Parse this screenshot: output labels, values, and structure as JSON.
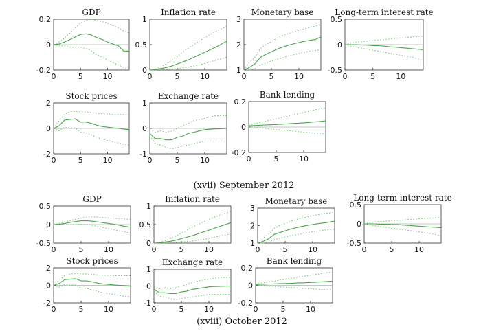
{
  "colors": {
    "line": "#4aa44a",
    "band": "#6cc06c",
    "zero": "#b0b0b0",
    "axis": "#333333"
  },
  "captions": {
    "top": "(xvii)   September 2012",
    "bottom": "(xviii)   October 2012"
  },
  "chart_data": [
    {
      "type": "line",
      "section": "(xvii) September 2012",
      "title": "GDP",
      "xlim": [
        0,
        14
      ],
      "ylim": [
        -0.2,
        0.2
      ],
      "yticks": [
        {
          "v": 0.2,
          "t": "0.2"
        },
        {
          "v": 0,
          "t": "0"
        },
        {
          "v": -0.2,
          "t": "-0.2"
        }
      ],
      "xticks": [
        0,
        5,
        10
      ],
      "x": [
        0,
        1,
        2,
        3,
        4,
        5,
        6,
        7,
        8,
        9,
        10,
        11,
        12,
        13,
        14
      ],
      "center": [
        0,
        0.005,
        0.02,
        0.04,
        0.06,
        0.08,
        0.085,
        0.075,
        0.055,
        0.04,
        0.02,
        0.005,
        -0.01,
        -0.05,
        -0.05
      ],
      "upper": [
        0,
        0.02,
        0.05,
        0.09,
        0.13,
        0.17,
        0.19,
        0.2,
        0.19,
        0.18,
        0.17,
        0.15,
        0.13,
        0.11,
        0.09
      ],
      "lower": [
        0,
        -0.01,
        -0.01,
        -0.02,
        -0.02,
        -0.02,
        -0.03,
        -0.05,
        -0.08,
        -0.1,
        -0.12,
        -0.14,
        -0.16,
        -0.18,
        -0.19
      ]
    },
    {
      "type": "line",
      "section": "(xvii) September 2012",
      "title": "Inflation rate",
      "xlim": [
        0,
        14
      ],
      "ylim": [
        0,
        1
      ],
      "yticks": [
        {
          "v": 1,
          "t": "1"
        },
        {
          "v": 0.5,
          "t": "0.5"
        },
        {
          "v": 0,
          "t": "0"
        }
      ],
      "xticks": [
        0,
        5,
        10
      ],
      "x": [
        0,
        1,
        2,
        3,
        4,
        5,
        6,
        7,
        8,
        9,
        10,
        11,
        12,
        13,
        14
      ],
      "center": [
        0,
        0.01,
        0.03,
        0.05,
        0.08,
        0.12,
        0.16,
        0.2,
        0.25,
        0.3,
        0.35,
        0.4,
        0.45,
        0.51,
        0.57
      ],
      "upper": [
        0,
        0.02,
        0.06,
        0.12,
        0.19,
        0.27,
        0.35,
        0.43,
        0.5,
        0.57,
        0.64,
        0.7,
        0.76,
        0.81,
        0.86
      ],
      "lower": [
        0,
        0,
        0.01,
        0.01,
        0.02,
        0.03,
        0.04,
        0.06,
        0.08,
        0.1,
        0.13,
        0.16,
        0.19,
        0.22,
        0.25
      ]
    },
    {
      "type": "line",
      "section": "(xvii) September 2012",
      "title": "Monetary base",
      "xlim": [
        0,
        14
      ],
      "ylim": [
        1,
        3
      ],
      "yticks": [
        {
          "v": 3,
          "t": "3"
        },
        {
          "v": 2,
          "t": "2"
        },
        {
          "v": 1,
          "t": "1"
        }
      ],
      "xticks": [
        0,
        5,
        10
      ],
      "x": [
        0,
        1,
        2,
        3,
        4,
        5,
        6,
        7,
        8,
        9,
        10,
        11,
        12,
        13,
        14
      ],
      "center": [
        1,
        1.1,
        1.25,
        1.5,
        1.62,
        1.72,
        1.82,
        1.9,
        1.97,
        2.03,
        2.08,
        2.13,
        2.17,
        2.2,
        2.3
      ],
      "upper": [
        1,
        1.3,
        1.5,
        1.85,
        2,
        2.12,
        2.25,
        2.35,
        2.43,
        2.5,
        2.56,
        2.62,
        2.68,
        2.72,
        2.8
      ],
      "lower": [
        1,
        1,
        1.05,
        1.2,
        1.28,
        1.35,
        1.42,
        1.48,
        1.55,
        1.6,
        1.65,
        1.7,
        1.74,
        1.77,
        1.8
      ]
    },
    {
      "type": "line",
      "section": "(xvii) September 2012",
      "title": "Long-term interest rate",
      "xlim": [
        0,
        14
      ],
      "ylim": [
        -0.5,
        0.5
      ],
      "yticks": [
        {
          "v": 0.5,
          "t": "0.5"
        },
        {
          "v": 0,
          "t": "0"
        },
        {
          "v": -0.5,
          "t": "-0.5"
        }
      ],
      "xticks": [
        0,
        5,
        10
      ],
      "x": [
        0,
        1,
        2,
        3,
        4,
        5,
        6,
        7,
        8,
        9,
        10,
        11,
        12,
        13,
        14
      ],
      "center": [
        0,
        0,
        0,
        -0.01,
        -0.01,
        -0.02,
        -0.02,
        -0.03,
        -0.04,
        -0.05,
        -0.06,
        -0.07,
        -0.08,
        -0.09,
        -0.1
      ],
      "upper": [
        0,
        0.03,
        0.05,
        0.06,
        0.07,
        0.08,
        0.09,
        0.1,
        0.11,
        0.12,
        0.13,
        0.14,
        0.15,
        0.16,
        0.17
      ],
      "lower": [
        0,
        -0.03,
        -0.05,
        -0.07,
        -0.09,
        -0.11,
        -0.13,
        -0.15,
        -0.17,
        -0.19,
        -0.21,
        -0.23,
        -0.25,
        -0.28,
        -0.31
      ]
    },
    {
      "type": "line",
      "section": "(xvii) September 2012",
      "title": "Stock prices",
      "xlim": [
        0,
        14
      ],
      "ylim": [
        -2,
        2
      ],
      "yticks": [
        {
          "v": 2,
          "t": "2"
        },
        {
          "v": 0,
          "t": "0"
        },
        {
          "v": -2,
          "t": "-2"
        }
      ],
      "xticks": [
        0,
        5,
        10
      ],
      "x": [
        0,
        1,
        2,
        3,
        4,
        5,
        6,
        7,
        8,
        9,
        10,
        11,
        12,
        13,
        14
      ],
      "center": [
        0,
        0.2,
        0.65,
        0.7,
        0.75,
        0.5,
        0.5,
        0.4,
        0.25,
        0.15,
        0.1,
        0.05,
        0,
        -0.05,
        -0.1
      ],
      "upper": [
        0,
        0.6,
        1.1,
        1.3,
        1.35,
        1.3,
        1.3,
        1.25,
        1.2,
        1.15,
        1.15,
        1.1,
        1.1,
        1.1,
        1.1
      ],
      "lower": [
        0,
        -0.2,
        0.1,
        0.05,
        0.05,
        -0.3,
        -0.35,
        -0.5,
        -0.7,
        -0.85,
        -0.95,
        -1.05,
        -1.15,
        -1.25,
        -1.3
      ]
    },
    {
      "type": "line",
      "section": "(xvii) September 2012",
      "title": "Exchange rate",
      "xlim": [
        0,
        14
      ],
      "ylim": [
        -1,
        1
      ],
      "yticks": [
        {
          "v": 1,
          "t": "1"
        },
        {
          "v": 0,
          "t": "0"
        },
        {
          "v": -1,
          "t": "-1"
        }
      ],
      "xticks": [
        0,
        5,
        10
      ],
      "x": [
        0,
        1,
        2,
        3,
        4,
        5,
        6,
        7,
        8,
        9,
        10,
        11,
        12,
        13,
        14
      ],
      "center": [
        -0.2,
        -0.4,
        -0.4,
        -0.45,
        -0.45,
        -0.35,
        -0.3,
        -0.2,
        -0.15,
        -0.1,
        -0.05,
        -0.03,
        -0.02,
        -0.01,
        0
      ],
      "upper": [
        -0.05,
        -0.15,
        -0.1,
        -0.15,
        -0.1,
        0,
        0.1,
        0.2,
        0.3,
        0.35,
        0.4,
        0.45,
        0.5,
        0.5,
        0.5
      ],
      "lower": [
        -0.3,
        -0.6,
        -0.65,
        -0.75,
        -0.8,
        -0.75,
        -0.7,
        -0.65,
        -0.6,
        -0.55,
        -0.5,
        -0.5,
        -0.5,
        -0.5,
        -0.5
      ]
    },
    {
      "type": "line",
      "section": "(xvii) September 2012",
      "title": "Bank lending",
      "xlim": [
        0,
        14
      ],
      "ylim": [
        -0.2,
        0.2
      ],
      "yticks": [
        {
          "v": 0.2,
          "t": "0.2"
        },
        {
          "v": 0,
          "t": "0"
        },
        {
          "v": -0.2,
          "t": "-0.2"
        }
      ],
      "xticks": [
        0,
        5,
        10
      ],
      "x": [
        0,
        1,
        2,
        3,
        4,
        5,
        6,
        7,
        8,
        9,
        10,
        11,
        12,
        13,
        14
      ],
      "center": [
        0.01,
        0.012,
        0.014,
        0.016,
        0.018,
        0.02,
        0.022,
        0.025,
        0.028,
        0.03,
        0.033,
        0.036,
        0.04,
        0.044,
        0.048
      ],
      "upper": [
        0.015,
        0.025,
        0.035,
        0.045,
        0.055,
        0.065,
        0.075,
        0.085,
        0.095,
        0.105,
        0.115,
        0.125,
        0.135,
        0.145,
        0.15
      ],
      "lower": [
        0.005,
        0,
        -0.005,
        -0.01,
        -0.015,
        -0.02,
        -0.025,
        -0.028,
        -0.032,
        -0.036,
        -0.04,
        -0.044,
        -0.048,
        -0.05,
        -0.05
      ]
    },
    {
      "type": "line",
      "section": "(xviii) October 2012",
      "title": "GDP",
      "xlim": [
        0,
        14
      ],
      "ylim": [
        -0.5,
        0.5
      ],
      "yticks": [
        {
          "v": 0.5,
          "t": "0.5"
        },
        {
          "v": 0,
          "t": "0"
        },
        {
          "v": -0.5,
          "t": "-0.5"
        }
      ],
      "xticks": [
        0,
        5,
        10
      ],
      "x": [
        0,
        1,
        2,
        3,
        4,
        5,
        6,
        7,
        8,
        9,
        10,
        11,
        12,
        13,
        14
      ],
      "center": [
        0,
        0.01,
        0.03,
        0.06,
        0.08,
        0.1,
        0.1,
        0.09,
        0.07,
        0.05,
        0.03,
        0.01,
        -0.02,
        -0.05,
        -0.07
      ],
      "upper": [
        0,
        0.03,
        0.07,
        0.11,
        0.14,
        0.18,
        0.2,
        0.21,
        0.2,
        0.19,
        0.18,
        0.17,
        0.16,
        0.15,
        0.14
      ],
      "lower": [
        0,
        -0.01,
        -0.01,
        -0.01,
        0,
        0.01,
        0,
        -0.02,
        -0.05,
        -0.08,
        -0.11,
        -0.14,
        -0.17,
        -0.2,
        -0.23
      ]
    },
    {
      "type": "line",
      "section": "(xviii) October 2012",
      "title": "Inflation rate",
      "xlim": [
        0,
        14
      ],
      "ylim": [
        0,
        1
      ],
      "yticks": [
        {
          "v": 1,
          "t": "1"
        },
        {
          "v": 0.5,
          "t": "0.5"
        },
        {
          "v": 0,
          "t": "0"
        }
      ],
      "xticks": [
        0,
        5,
        10
      ],
      "x": [
        0,
        1,
        2,
        3,
        4,
        5,
        6,
        7,
        8,
        9,
        10,
        11,
        12,
        13,
        14
      ],
      "center": [
        0,
        0.01,
        0.03,
        0.05,
        0.08,
        0.12,
        0.16,
        0.2,
        0.25,
        0.3,
        0.35,
        0.4,
        0.45,
        0.5,
        0.55
      ],
      "upper": [
        0,
        0.02,
        0.06,
        0.12,
        0.19,
        0.27,
        0.35,
        0.43,
        0.5,
        0.57,
        0.64,
        0.7,
        0.76,
        0.81,
        0.86
      ],
      "lower": [
        0,
        0,
        0.01,
        0.01,
        0.02,
        0.03,
        0.04,
        0.06,
        0.08,
        0.1,
        0.13,
        0.16,
        0.19,
        0.22,
        0.25
      ]
    },
    {
      "type": "line",
      "section": "(xviii) October 2012",
      "title": "Monetary base",
      "xlim": [
        0,
        14
      ],
      "ylim": [
        1,
        3
      ],
      "yticks": [
        {
          "v": 3,
          "t": "3"
        },
        {
          "v": 2,
          "t": "2"
        },
        {
          "v": 1,
          "t": "1"
        }
      ],
      "xticks": [
        0,
        5,
        10
      ],
      "x": [
        0,
        1,
        2,
        3,
        4,
        5,
        6,
        7,
        8,
        9,
        10,
        11,
        12,
        13,
        14
      ],
      "center": [
        1,
        1.1,
        1.25,
        1.5,
        1.6,
        1.7,
        1.8,
        1.88,
        1.95,
        2.01,
        2.06,
        2.11,
        2.15,
        2.2,
        2.25
      ],
      "upper": [
        1,
        1.3,
        1.5,
        1.85,
        2,
        2.12,
        2.25,
        2.35,
        2.43,
        2.5,
        2.56,
        2.62,
        2.68,
        2.72,
        2.8
      ],
      "lower": [
        1,
        1,
        1.05,
        1.2,
        1.28,
        1.35,
        1.42,
        1.48,
        1.55,
        1.6,
        1.65,
        1.7,
        1.74,
        1.77,
        1.8
      ]
    },
    {
      "type": "line",
      "section": "(xviii) October 2012",
      "title": "Long-term interest rate",
      "xlim": [
        0,
        14
      ],
      "ylim": [
        -0.5,
        0.5
      ],
      "yticks": [
        {
          "v": 0.5,
          "t": "0.5"
        },
        {
          "v": 0,
          "t": "0"
        },
        {
          "v": -0.5,
          "t": "-0.5"
        }
      ],
      "xticks": [
        0,
        5,
        10
      ],
      "x": [
        0,
        1,
        2,
        3,
        4,
        5,
        6,
        7,
        8,
        9,
        10,
        11,
        12,
        13,
        14
      ],
      "center": [
        0,
        0,
        0,
        -0.01,
        -0.01,
        -0.02,
        -0.02,
        -0.03,
        -0.04,
        -0.05,
        -0.06,
        -0.07,
        -0.08,
        -0.09,
        -0.1
      ],
      "upper": [
        0,
        0.03,
        0.05,
        0.06,
        0.07,
        0.08,
        0.09,
        0.1,
        0.11,
        0.12,
        0.13,
        0.14,
        0.15,
        0.16,
        0.17
      ],
      "lower": [
        0,
        -0.03,
        -0.05,
        -0.07,
        -0.09,
        -0.11,
        -0.13,
        -0.15,
        -0.17,
        -0.19,
        -0.21,
        -0.23,
        -0.25,
        -0.28,
        -0.31
      ]
    },
    {
      "type": "line",
      "section": "(xviii) October 2012",
      "title": "Stock prices",
      "xlim": [
        0,
        14
      ],
      "ylim": [
        -2,
        2
      ],
      "yticks": [
        {
          "v": 2,
          "t": "2"
        },
        {
          "v": 0,
          "t": "0"
        },
        {
          "v": -2,
          "t": "-2"
        }
      ],
      "xticks": [
        0,
        5,
        10
      ],
      "x": [
        0,
        1,
        2,
        3,
        4,
        5,
        6,
        7,
        8,
        9,
        10,
        11,
        12,
        13,
        14
      ],
      "center": [
        0,
        0.2,
        0.65,
        0.7,
        0.75,
        0.5,
        0.5,
        0.4,
        0.25,
        0.15,
        0.1,
        0.05,
        0,
        -0.05,
        -0.1
      ],
      "upper": [
        0,
        0.6,
        1.1,
        1.3,
        1.35,
        1.3,
        1.3,
        1.25,
        1.2,
        1.15,
        1.15,
        1.1,
        1.1,
        1.1,
        1.1
      ],
      "lower": [
        0,
        -0.2,
        0.1,
        0.05,
        0.05,
        -0.3,
        -0.35,
        -0.5,
        -0.7,
        -0.85,
        -0.95,
        -1.05,
        -1.15,
        -1.25,
        -1.3
      ]
    },
    {
      "type": "line",
      "section": "(xviii) October 2012",
      "title": "Exchange rate",
      "xlim": [
        0,
        14
      ],
      "ylim": [
        -1,
        1
      ],
      "yticks": [
        {
          "v": 1,
          "t": "1"
        },
        {
          "v": 0,
          "t": "0"
        },
        {
          "v": -1,
          "t": "-1"
        }
      ],
      "xticks": [
        0,
        5,
        10
      ],
      "x": [
        0,
        1,
        2,
        3,
        4,
        5,
        6,
        7,
        8,
        9,
        10,
        11,
        12,
        13,
        14
      ],
      "center": [
        -0.2,
        -0.4,
        -0.4,
        -0.45,
        -0.45,
        -0.35,
        -0.3,
        -0.2,
        -0.15,
        -0.1,
        -0.05,
        -0.03,
        -0.02,
        -0.01,
        0
      ],
      "upper": [
        -0.05,
        -0.15,
        -0.1,
        -0.15,
        -0.1,
        0,
        0.1,
        0.2,
        0.3,
        0.35,
        0.4,
        0.45,
        0.5,
        0.5,
        0.5
      ],
      "lower": [
        -0.3,
        -0.6,
        -0.65,
        -0.75,
        -0.8,
        -0.75,
        -0.7,
        -0.65,
        -0.6,
        -0.55,
        -0.5,
        -0.5,
        -0.5,
        -0.5,
        -0.5
      ]
    },
    {
      "type": "line",
      "section": "(xviii) October 2012",
      "title": "Bank lending",
      "xlim": [
        0,
        14
      ],
      "ylim": [
        -0.2,
        0.2
      ],
      "yticks": [
        {
          "v": 0.2,
          "t": "0.2"
        },
        {
          "v": 0,
          "t": "0"
        },
        {
          "v": -0.2,
          "t": "-0.2"
        }
      ],
      "xticks": [
        0,
        5,
        10
      ],
      "x": [
        0,
        1,
        2,
        3,
        4,
        5,
        6,
        7,
        8,
        9,
        10,
        11,
        12,
        13,
        14
      ],
      "center": [
        0.01,
        0.012,
        0.014,
        0.016,
        0.018,
        0.02,
        0.022,
        0.025,
        0.028,
        0.03,
        0.033,
        0.036,
        0.04,
        0.044,
        0.048
      ],
      "upper": [
        0.015,
        0.025,
        0.035,
        0.045,
        0.055,
        0.065,
        0.075,
        0.085,
        0.095,
        0.105,
        0.115,
        0.125,
        0.135,
        0.145,
        0.15
      ],
      "lower": [
        0.005,
        0,
        -0.005,
        -0.01,
        -0.015,
        -0.02,
        -0.025,
        -0.028,
        -0.032,
        -0.036,
        -0.04,
        -0.044,
        -0.048,
        -0.05,
        -0.05
      ]
    }
  ]
}
